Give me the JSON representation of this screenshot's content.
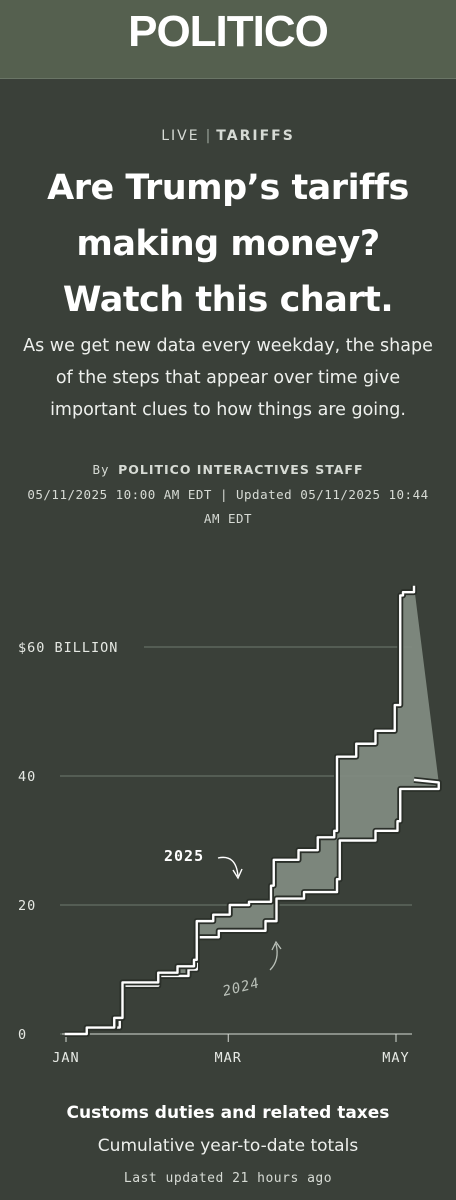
{
  "header": {
    "logo": "POLITICO"
  },
  "article": {
    "kicker_live": "LIVE",
    "kicker_sep": "|",
    "kicker_tag": "TARIFFS",
    "headline": "Are Trump’s tariffs making money? Watch this chart.",
    "dek": "As we get new data every weekday, the shape of the steps that appear over time give important clues to how things are going.",
    "byline_prefix": "By",
    "byline_author": "POLITICO INTERACTIVES STAFF",
    "dates": "05/11/2025 10:00 AM EDT | Updated 05/11/2025 10:44 AM EDT"
  },
  "caption": {
    "title": "Customs duties and related taxes",
    "subtitle": "Cumulative year-to-date totals",
    "updated": "Last updated 21 hours ago"
  },
  "colors": {
    "background": "#3a4039",
    "header": "#55604f",
    "fill": "#7f8a7f",
    "line": "#ffffff"
  },
  "chart_data": {
    "type": "line",
    "x_tick_labels": [
      "JAN",
      "MAR",
      "MAY"
    ],
    "y_tick_labels": [
      "$60 BILLION",
      "40",
      "20",
      "0"
    ],
    "y_ticks": [
      60,
      40,
      20,
      0
    ],
    "ylim": [
      0,
      70
    ],
    "grid": true,
    "series": [
      {
        "name": "2025",
        "x": [
          "2025-01-02",
          "2025-01-10",
          "2025-01-20",
          "2025-01-23",
          "2025-02-05",
          "2025-02-12",
          "2025-02-18",
          "2025-02-19",
          "2025-02-25",
          "2025-03-03",
          "2025-03-10",
          "2025-03-18",
          "2025-03-19",
          "2025-03-28",
          "2025-04-04",
          "2025-04-10",
          "2025-04-11",
          "2025-04-18",
          "2025-04-25",
          "2025-05-02",
          "2025-05-04",
          "2025-05-05",
          "2025-05-09"
        ],
        "values": [
          0,
          1,
          2.5,
          8,
          9.5,
          10.5,
          11.5,
          17.5,
          18.5,
          20,
          20.5,
          23,
          27,
          28.5,
          30.5,
          31.5,
          43,
          45,
          47,
          51,
          68,
          68.5,
          69.5
        ]
      },
      {
        "name": "2024",
        "x": [
          "2024-01-02",
          "2024-01-10",
          "2024-01-22",
          "2024-01-23",
          "2024-02-05",
          "2024-02-16",
          "2024-02-19",
          "2024-02-27",
          "2024-03-15",
          "2024-03-19",
          "2024-03-29",
          "2024-04-10",
          "2024-04-11",
          "2024-04-24",
          "2024-05-02",
          "2024-05-03",
          "2024-05-17"
        ],
        "values": [
          0,
          1,
          2.5,
          7.5,
          9,
          10,
          15,
          16,
          17.5,
          21,
          22,
          24,
          30,
          31.5,
          33,
          38,
          39
        ]
      }
    ],
    "annotations": [
      "2025",
      "2024"
    ]
  }
}
